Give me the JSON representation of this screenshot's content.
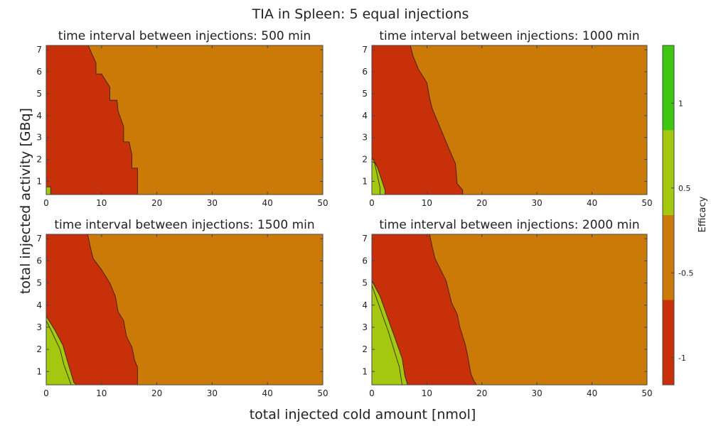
{
  "figure": {
    "suptitle": "TIA in Spleen: 5 equal injections",
    "xlabel": "total injected cold amount [nmol]",
    "ylabel": "total injected activity [GBq]"
  },
  "colorbar": {
    "label": "Efficacy",
    "ticks": [
      "1",
      "0.5",
      "-0.5",
      "-1"
    ],
    "levels": [
      {
        "name": "-1",
        "color": "#c8300a"
      },
      {
        "name": "-0.5",
        "color": "#cb7a08"
      },
      {
        "name": "0.5",
        "color": "#a4c80f"
      },
      {
        "name": "1",
        "color": "#3ec613"
      }
    ]
  },
  "chart_data": [
    {
      "type": "contour",
      "title": "time interval between injections: 500 min",
      "xlim": [
        0,
        50
      ],
      "ylim": [
        0.4,
        7.2
      ],
      "xticks": [
        0,
        10,
        20,
        30,
        40,
        50
      ],
      "yticks": [
        1,
        2,
        3,
        4,
        5,
        6,
        7
      ],
      "green_boundary": [
        [
          0,
          0.75
        ],
        [
          0.8,
          0.75
        ],
        [
          0.8,
          0.4
        ]
      ],
      "red_boundary": [
        [
          7.6,
          7.2
        ],
        [
          9,
          6.4
        ],
        [
          9,
          5.9
        ],
        [
          10,
          5.9
        ],
        [
          11.5,
          5.3
        ],
        [
          11.5,
          4.7
        ],
        [
          12.8,
          4.7
        ],
        [
          13,
          4.2
        ],
        [
          14,
          3.5
        ],
        [
          14,
          2.8
        ],
        [
          15,
          2.8
        ],
        [
          15.5,
          2.2
        ],
        [
          15.5,
          1.6
        ],
        [
          16.5,
          1.6
        ],
        [
          16.5,
          0.4
        ]
      ],
      "lime_boundary": [
        [
          0,
          0.4
        ]
      ]
    },
    {
      "type": "contour",
      "title": "time interval between injections: 1000 min",
      "xlim": [
        0,
        50
      ],
      "ylim": [
        0.4,
        7.2
      ],
      "xticks": [
        0,
        10,
        20,
        30,
        40,
        50
      ],
      "yticks": [
        1,
        2,
        3,
        4,
        5,
        6,
        7
      ],
      "green_boundary": [
        [
          0,
          1.9
        ],
        [
          0.5,
          1.85
        ],
        [
          1.5,
          0.7
        ],
        [
          1.5,
          0.4
        ]
      ],
      "lime_boundary": [
        [
          0,
          2.1
        ],
        [
          1,
          1.65
        ],
        [
          2.4,
          0.6
        ],
        [
          2.4,
          0.4
        ]
      ],
      "red_boundary": [
        [
          7,
          7.2
        ],
        [
          7.5,
          6.7
        ],
        [
          8.5,
          6.1
        ],
        [
          10,
          5.5
        ],
        [
          10.5,
          4.8
        ],
        [
          11,
          4.3
        ],
        [
          12,
          3.7
        ],
        [
          13,
          3.1
        ],
        [
          14,
          2.5
        ],
        [
          15.2,
          1.8
        ],
        [
          15.5,
          0.9
        ],
        [
          16.5,
          0.6
        ],
        [
          16.5,
          0.4
        ]
      ]
    },
    {
      "type": "contour",
      "title": "time interval between injections: 1500 min",
      "xlim": [
        0,
        50
      ],
      "ylim": [
        0.4,
        7.2
      ],
      "xticks": [
        0,
        10,
        20,
        30,
        40,
        50
      ],
      "yticks": [
        1,
        2,
        3,
        4,
        5,
        6,
        7
      ],
      "green_boundary": [
        [
          0,
          3.3
        ],
        [
          1,
          2.8
        ],
        [
          2.5,
          2.0
        ],
        [
          3.2,
          1.3
        ],
        [
          4.5,
          0.4
        ]
      ],
      "lime_boundary": [
        [
          0,
          3.5
        ],
        [
          1.5,
          2.9
        ],
        [
          3,
          2.2
        ],
        [
          3.8,
          1.5
        ],
        [
          5,
          0.5
        ],
        [
          5.5,
          0.4
        ]
      ],
      "red_boundary": [
        [
          7.5,
          7.2
        ],
        [
          8,
          6.6
        ],
        [
          8.5,
          6.1
        ],
        [
          10,
          5.6
        ],
        [
          11.5,
          5.0
        ],
        [
          12.5,
          4.4
        ],
        [
          13,
          3.7
        ],
        [
          14,
          3.3
        ],
        [
          14.5,
          2.6
        ],
        [
          15.5,
          2.1
        ],
        [
          16,
          1.5
        ],
        [
          16.5,
          1.2
        ],
        [
          16.5,
          0.4
        ]
      ]
    },
    {
      "type": "contour",
      "title": "time interval between injections: 2000 min",
      "xlim": [
        0,
        50
      ],
      "ylim": [
        0.4,
        7.2
      ],
      "xticks": [
        0,
        10,
        20,
        30,
        40,
        50
      ],
      "yticks": [
        1,
        2,
        3,
        4,
        5,
        6,
        7
      ],
      "green_boundary": [
        [
          0,
          4.9
        ],
        [
          1,
          4.2
        ],
        [
          2,
          3.5
        ],
        [
          3,
          2.8
        ],
        [
          4,
          2.0
        ],
        [
          5,
          1.2
        ],
        [
          5.5,
          0.4
        ]
      ],
      "lime_boundary": [
        [
          0,
          5.1
        ],
        [
          1.5,
          4.4
        ],
        [
          2.5,
          3.7
        ],
        [
          3.5,
          3.0
        ],
        [
          4.5,
          2.3
        ],
        [
          5.5,
          1.6
        ],
        [
          6,
          0.8
        ],
        [
          6.5,
          0.4
        ]
      ],
      "red_boundary": [
        [
          10.5,
          7.2
        ],
        [
          11,
          6.6
        ],
        [
          11.5,
          6.1
        ],
        [
          12.5,
          5.6
        ],
        [
          13.5,
          5.1
        ],
        [
          14,
          4.6
        ],
        [
          14.5,
          4.1
        ],
        [
          15.5,
          3.6
        ],
        [
          16,
          3.0
        ],
        [
          16.5,
          2.6
        ],
        [
          17,
          2.2
        ],
        [
          17.5,
          1.6
        ],
        [
          18,
          0.9
        ],
        [
          18.5,
          0.6
        ],
        [
          19,
          0.4
        ]
      ]
    }
  ]
}
